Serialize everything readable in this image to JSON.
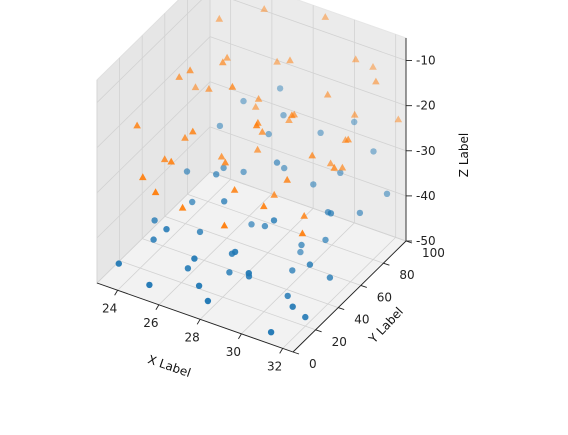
{
  "chart_data": {
    "type": "scatter",
    "projection": "3d",
    "title": "",
    "xlabel": "X Label",
    "ylabel": "Y Label",
    "zlabel": "Z Label",
    "xlim": [
      23,
      32.5
    ],
    "ylim": [
      0,
      100
    ],
    "zlim": [
      -50,
      -5
    ],
    "x_ticks": [
      "24",
      "26",
      "28",
      "30",
      "32"
    ],
    "y_ticks": [
      "0",
      "20",
      "40",
      "60",
      "80",
      "100"
    ],
    "z_ticks": [
      "-10",
      "-20",
      "-30",
      "-40",
      "-50"
    ],
    "z_tick_values": [
      -10,
      -20,
      -30,
      -40,
      -50
    ],
    "x_tick_values": [
      24,
      26,
      28,
      30,
      32
    ],
    "y_tick_values": [
      0,
      20,
      40,
      60,
      80,
      100
    ],
    "grid": true,
    "series": [
      {
        "marker": "circle",
        "color": "#1f77b4",
        "points": [
          [
            23.4,
            12,
            -48
          ],
          [
            24.1,
            30,
            -46
          ],
          [
            24.6,
            55,
            -43
          ],
          [
            25.1,
            8,
            -49
          ],
          [
            25.3,
            70,
            -38
          ],
          [
            25.8,
            40,
            -44
          ],
          [
            26.2,
            22,
            -47
          ],
          [
            26.5,
            88,
            -33
          ],
          [
            26.9,
            15,
            -42
          ],
          [
            27.2,
            60,
            -45
          ],
          [
            27.5,
            35,
            -49
          ],
          [
            27.8,
            78,
            -36
          ],
          [
            28.1,
            5,
            -47
          ],
          [
            28.4,
            50,
            -41
          ],
          [
            28.8,
            92,
            -30
          ],
          [
            29.0,
            25,
            -45
          ],
          [
            29.3,
            65,
            -49
          ],
          [
            29.7,
            12,
            -40
          ],
          [
            30.0,
            45,
            -47
          ],
          [
            30.3,
            82,
            -34
          ],
          [
            30.6,
            30,
            -48
          ],
          [
            30.9,
            58,
            -42
          ],
          [
            31.2,
            95,
            -31
          ],
          [
            31.5,
            18,
            -46
          ],
          [
            31.8,
            72,
            -38
          ],
          [
            32.1,
            40,
            -44
          ],
          [
            32.4,
            85,
            -36
          ],
          [
            23.8,
            65,
            -40
          ],
          [
            24.3,
            85,
            -34
          ],
          [
            24.9,
            95,
            -30
          ],
          [
            25.6,
            58,
            -36
          ],
          [
            26.0,
            75,
            -39
          ],
          [
            26.7,
            45,
            -37
          ],
          [
            27.0,
            92,
            -29
          ],
          [
            27.4,
            10,
            -46
          ],
          [
            28.0,
            68,
            -32
          ],
          [
            28.6,
            20,
            -39
          ],
          [
            29.1,
            80,
            -38
          ],
          [
            29.5,
            38,
            -35
          ],
          [
            30.1,
            98,
            -27
          ],
          [
            30.8,
            62,
            -37
          ],
          [
            31.0,
            8,
            -50
          ],
          [
            31.6,
            50,
            -33
          ],
          [
            32.0,
            20,
            -48
          ],
          [
            23.6,
            40,
            -45
          ],
          [
            25.0,
            25,
            -41
          ],
          [
            26.4,
            100,
            -26
          ],
          [
            27.9,
            30,
            -43
          ],
          [
            29.9,
            55,
            -44
          ],
          [
            31.4,
            35,
            -41
          ]
        ]
      },
      {
        "marker": "triangle",
        "color": "#ff7f0e",
        "points": [
          [
            23.3,
            30,
            -22
          ],
          [
            23.7,
            60,
            -18
          ],
          [
            24.0,
            90,
            -12
          ],
          [
            24.4,
            15,
            -28
          ],
          [
            24.8,
            45,
            -26
          ],
          [
            25.2,
            75,
            -15
          ],
          [
            25.5,
            20,
            -24
          ],
          [
            25.9,
            95,
            -8
          ],
          [
            26.3,
            50,
            -29
          ],
          [
            26.6,
            10,
            -30
          ],
          [
            27.0,
            70,
            -20
          ],
          [
            27.3,
            35,
            -25
          ],
          [
            27.7,
            85,
            -14
          ],
          [
            28.0,
            55,
            -22
          ],
          [
            28.3,
            25,
            -27
          ],
          [
            28.7,
            98,
            -6
          ],
          [
            29.0,
            65,
            -19
          ],
          [
            29.4,
            40,
            -30
          ],
          [
            29.8,
            80,
            -17
          ],
          [
            30.1,
            18,
            -26
          ],
          [
            30.5,
            92,
            -11
          ],
          [
            30.8,
            48,
            -21
          ],
          [
            31.1,
            72,
            -23
          ],
          [
            31.4,
            30,
            -29
          ],
          [
            31.7,
            88,
            -13
          ],
          [
            32.0,
            58,
            -18
          ],
          [
            32.3,
            12,
            -27
          ],
          [
            23.5,
            78,
            -25
          ],
          [
            24.2,
            38,
            -30
          ],
          [
            24.7,
            68,
            -21
          ],
          [
            25.4,
            8,
            -28
          ],
          [
            26.0,
            30,
            -19
          ],
          [
            26.8,
            90,
            -17
          ],
          [
            27.5,
            60,
            -28
          ],
          [
            28.2,
            75,
            -24
          ],
          [
            28.9,
            5,
            -29
          ],
          [
            29.6,
            52,
            -15
          ],
          [
            30.3,
            35,
            -24
          ],
          [
            30.9,
            100,
            -14
          ],
          [
            31.5,
            62,
            -26
          ],
          [
            32.2,
            42,
            -20
          ],
          [
            25.7,
            62,
            -12
          ],
          [
            27.1,
            45,
            -11
          ],
          [
            29.2,
            28,
            -12
          ],
          [
            31.0,
            82,
            -20
          ],
          [
            26.2,
            82,
            -26
          ],
          [
            28.5,
            42,
            -16
          ],
          [
            30.6,
            68,
            -28
          ],
          [
            24.5,
            55,
            -14
          ],
          [
            32.4,
            95,
            -22
          ]
        ]
      }
    ]
  }
}
